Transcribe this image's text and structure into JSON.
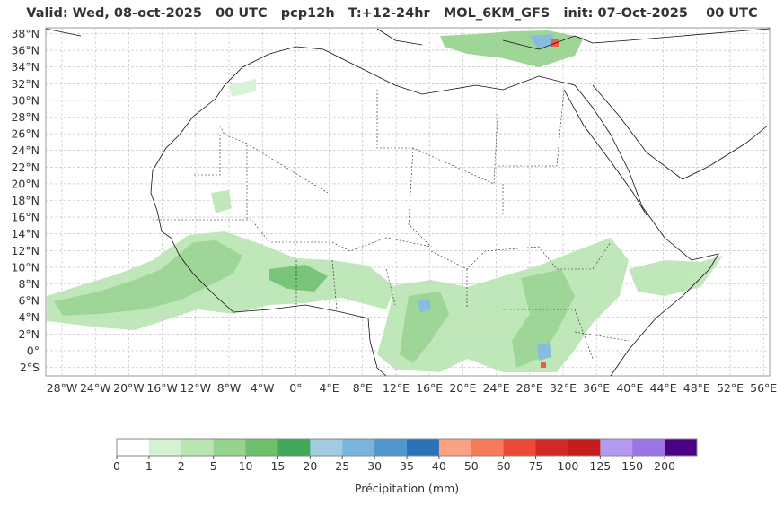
{
  "title": "Valid: Wed, 08-oct-2025   00 UTC   pcp12h   T:+12-24hr   MOL_6KM_GFS   init: 07-Oct-2025    00 UTC",
  "lat_labels": [
    "38°N",
    "36°N",
    "34°N",
    "32°N",
    "30°N",
    "28°N",
    "26°N",
    "24°N",
    "22°N",
    "20°N",
    "18°N",
    "16°N",
    "14°N",
    "12°N",
    "10°N",
    "8°N",
    "6°N",
    "4°N",
    "2°N",
    "0°",
    "2°S"
  ],
  "lon_labels": [
    "28°W",
    "24°W",
    "20°W",
    "16°W",
    "12°W",
    "8°W",
    "4°W",
    "0°",
    "4°E",
    "8°E",
    "12°E",
    "16°E",
    "20°E",
    "24°E",
    "28°E",
    "32°E",
    "36°E",
    "40°E",
    "44°E",
    "48°E",
    "52°E",
    "56°E"
  ],
  "colorbar": {
    "label": "Précipitation (mm)",
    "ticks": [
      "0",
      "1",
      "2",
      "5",
      "10",
      "15",
      "20",
      "25",
      "30",
      "35",
      "40",
      "50",
      "60",
      "75",
      "100",
      "125",
      "150",
      "200"
    ],
    "colors": [
      "#ffffff",
      "#d4f2d2",
      "#b9e5b3",
      "#94d28d",
      "#6cc06b",
      "#3fa85a",
      "#a2cbe2",
      "#7bb5db",
      "#4f97cc",
      "#2a73b8",
      "#f9a183",
      "#f67b5a",
      "#ea4a36",
      "#d42a26",
      "#c51d1d",
      "#b49aee",
      "#9a76e5",
      "#4b0085"
    ]
  }
}
